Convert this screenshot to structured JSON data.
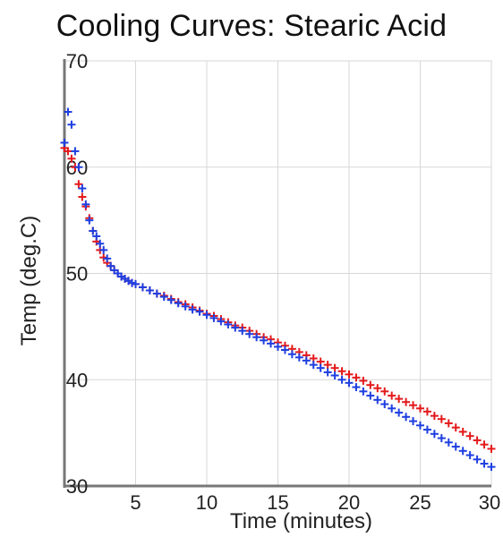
{
  "chart_data": {
    "type": "scatter",
    "title": "Cooling Curves: Stearic Acid",
    "xlabel": "Time (minutes)",
    "ylabel": "Temp (deg.C)",
    "xlim": [
      0,
      30
    ],
    "ylim": [
      30,
      70
    ],
    "x_ticks": [
      5,
      10,
      15,
      20,
      25,
      30
    ],
    "y_ticks": [
      30,
      40,
      50,
      60,
      70
    ],
    "grid": true,
    "marker": "+",
    "series": [
      {
        "color": "#e41a1c",
        "x": [
          0.0,
          0.25,
          0.5,
          0.75,
          1.0,
          1.25,
          1.5,
          1.75,
          2.0,
          2.25,
          2.5,
          2.75,
          3.0,
          3.25,
          3.5,
          3.75,
          4.0,
          4.25,
          4.5,
          4.75,
          5.0,
          5.5,
          6.0,
          6.5,
          7.0,
          7.5,
          8.0,
          8.5,
          9.0,
          9.5,
          10.0,
          10.5,
          11.0,
          11.5,
          12.0,
          12.5,
          13.0,
          13.5,
          14.0,
          14.5,
          15.0,
          15.5,
          16.0,
          16.5,
          17.0,
          17.5,
          18.0,
          18.5,
          19.0,
          19.5,
          20.0,
          20.5,
          21.0,
          21.5,
          22.0,
          22.5,
          23.0,
          23.5,
          24.0,
          24.5,
          25.0,
          25.5,
          26.0,
          26.5,
          27.0,
          27.5,
          28.0,
          28.5,
          29.0,
          29.5,
          30.0
        ],
        "y": [
          61.8,
          61.5,
          60.8,
          60.0,
          58.4,
          57.2,
          56.3,
          55.2,
          54.0,
          53.0,
          52.2,
          51.5,
          51.0,
          50.7,
          50.3,
          50.0,
          49.7,
          49.5,
          49.3,
          49.1,
          49.0,
          48.7,
          48.4,
          48.1,
          47.9,
          47.6,
          47.3,
          47.1,
          46.8,
          46.5,
          46.2,
          46.0,
          45.7,
          45.4,
          45.1,
          44.9,
          44.6,
          44.3,
          44.0,
          43.8,
          43.5,
          43.2,
          42.9,
          42.6,
          42.3,
          42.0,
          41.7,
          41.4,
          41.1,
          40.8,
          40.5,
          40.2,
          39.9,
          39.5,
          39.2,
          38.9,
          38.5,
          38.2,
          37.9,
          37.6,
          37.3,
          37.0,
          36.6,
          36.3,
          35.9,
          35.5,
          35.1,
          34.7,
          34.3,
          33.9,
          33.5
        ]
      },
      {
        "color": "#1f3fe0",
        "x": [
          0.0,
          0.25,
          0.5,
          0.75,
          1.0,
          1.25,
          1.5,
          1.75,
          2.0,
          2.25,
          2.5,
          2.75,
          3.0,
          3.25,
          3.5,
          3.75,
          4.0,
          4.25,
          4.5,
          4.75,
          5.0,
          5.5,
          6.0,
          6.5,
          7.0,
          7.5,
          8.0,
          8.5,
          9.0,
          9.5,
          10.0,
          10.5,
          11.0,
          11.5,
          12.0,
          12.5,
          13.0,
          13.5,
          14.0,
          14.5,
          15.0,
          15.5,
          16.0,
          16.5,
          17.0,
          17.5,
          18.0,
          18.5,
          19.0,
          19.5,
          20.0,
          20.5,
          21.0,
          21.5,
          22.0,
          22.5,
          23.0,
          23.5,
          24.0,
          24.5,
          25.0,
          25.5,
          26.0,
          26.5,
          27.0,
          27.5,
          28.0,
          28.5,
          29.0,
          29.5,
          30.0
        ],
        "y": [
          62.3,
          65.2,
          64.0,
          61.5,
          60.0,
          58.0,
          56.5,
          55.0,
          54.0,
          53.5,
          52.8,
          52.2,
          51.4,
          50.7,
          50.3,
          50.0,
          49.7,
          49.5,
          49.3,
          49.1,
          49.0,
          48.7,
          48.4,
          48.1,
          47.8,
          47.5,
          47.2,
          46.9,
          46.6,
          46.4,
          46.1,
          45.8,
          45.5,
          45.2,
          44.9,
          44.6,
          44.3,
          44.0,
          43.7,
          43.4,
          43.1,
          42.8,
          42.4,
          42.1,
          41.8,
          41.4,
          41.1,
          40.7,
          40.4,
          40.0,
          39.7,
          39.3,
          38.9,
          38.5,
          38.1,
          37.7,
          37.3,
          36.9,
          36.5,
          36.1,
          35.7,
          35.3,
          34.9,
          34.5,
          34.1,
          33.7,
          33.3,
          32.9,
          32.5,
          32.1,
          31.8
        ]
      }
    ]
  }
}
